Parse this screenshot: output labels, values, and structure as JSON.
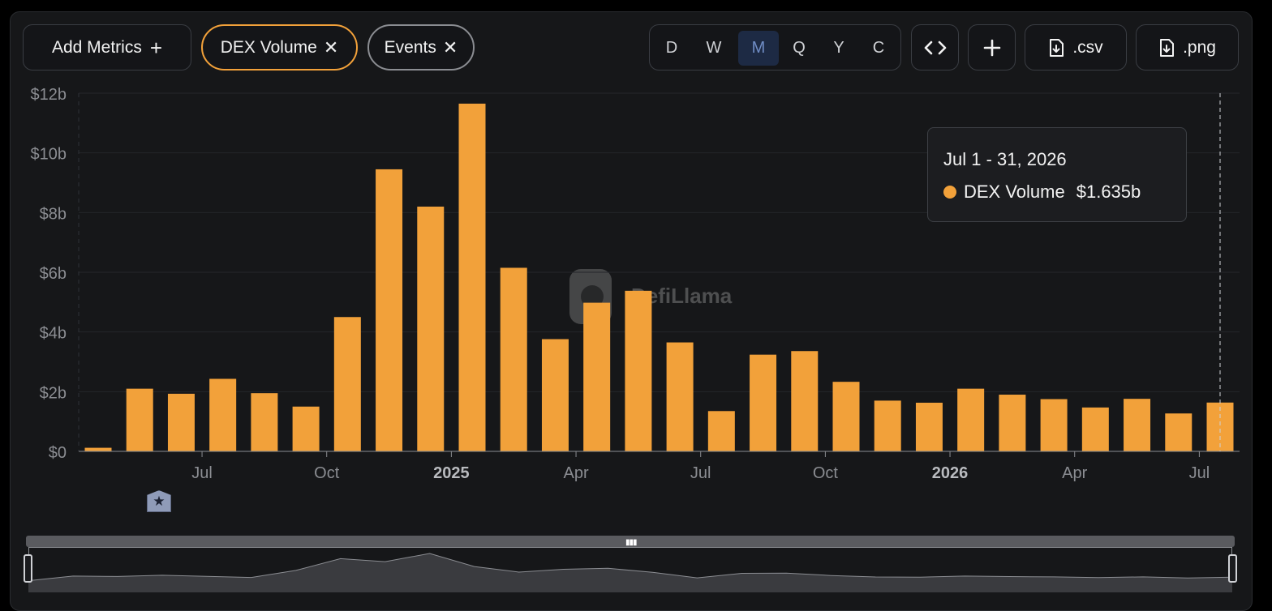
{
  "toolbar": {
    "add_metrics": "Add Metrics",
    "add_metrics_icon": "plus-icon",
    "chips": [
      {
        "label": "DEX Volume",
        "color": "#f2a13a"
      },
      {
        "label": "Events",
        "color": "#8b8d92"
      }
    ],
    "periods": [
      "D",
      "W",
      "M",
      "Q",
      "Y",
      "C"
    ],
    "active_period": "M",
    "embed_icon": "code-icon",
    "add_icon": "plus-icon",
    "csv_label": ".csv",
    "png_label": ".png",
    "download_icon": "file-download-icon"
  },
  "tooltip": {
    "date": "Jul 1 - 31, 2026",
    "series": "DEX Volume",
    "value": "$1.635b"
  },
  "watermark": "DefiLlama",
  "chart_data": {
    "type": "bar",
    "categories": [
      "2024-04",
      "2024-05",
      "2024-06",
      "2024-07",
      "2024-08",
      "2024-09",
      "2024-10",
      "2024-11",
      "2024-12",
      "2025-01",
      "2025-02",
      "2025-03",
      "2025-04",
      "2025-05",
      "2025-06",
      "2025-07",
      "2025-08",
      "2025-09",
      "2025-10",
      "2025-11",
      "2025-12",
      "2026-01",
      "2026-02",
      "2026-03",
      "2026-04",
      "2026-05",
      "2026-06",
      "2026-07"
    ],
    "series": [
      {
        "name": "DEX Volume",
        "color": "#f2a13a",
        "values": [
          0.12,
          2.1,
          1.93,
          2.43,
          1.95,
          1.5,
          4.5,
          9.45,
          8.2,
          11.65,
          6.15,
          3.76,
          4.98,
          5.38,
          3.65,
          1.35,
          3.24,
          3.36,
          2.33,
          1.7,
          1.63,
          2.1,
          1.9,
          1.75,
          1.47,
          1.76,
          1.27,
          1.635
        ]
      }
    ],
    "yunit": "billions USD",
    "ylim": [
      0,
      12
    ],
    "yticks": [
      "$0",
      "$2b",
      "$4b",
      "$6b",
      "$8b",
      "$10b",
      "$12b"
    ],
    "xticks": [
      {
        "label": "Jul",
        "at": "2024-07",
        "bold": false
      },
      {
        "label": "Oct",
        "at": "2024-10",
        "bold": false
      },
      {
        "label": "2025",
        "at": "2025-01",
        "bold": true
      },
      {
        "label": "Apr",
        "at": "2025-04",
        "bold": false
      },
      {
        "label": "Jul",
        "at": "2025-07",
        "bold": false
      },
      {
        "label": "Oct",
        "at": "2025-10",
        "bold": false
      },
      {
        "label": "2026",
        "at": "2026-01",
        "bold": true
      },
      {
        "label": "Apr",
        "at": "2026-04",
        "bold": false
      },
      {
        "label": "Jul",
        "at": "2026-07",
        "bold": false
      }
    ],
    "grid": true,
    "highlighted_category": "2026-07",
    "events": [
      {
        "at": "2024-06",
        "icon": "star-icon"
      }
    ]
  }
}
